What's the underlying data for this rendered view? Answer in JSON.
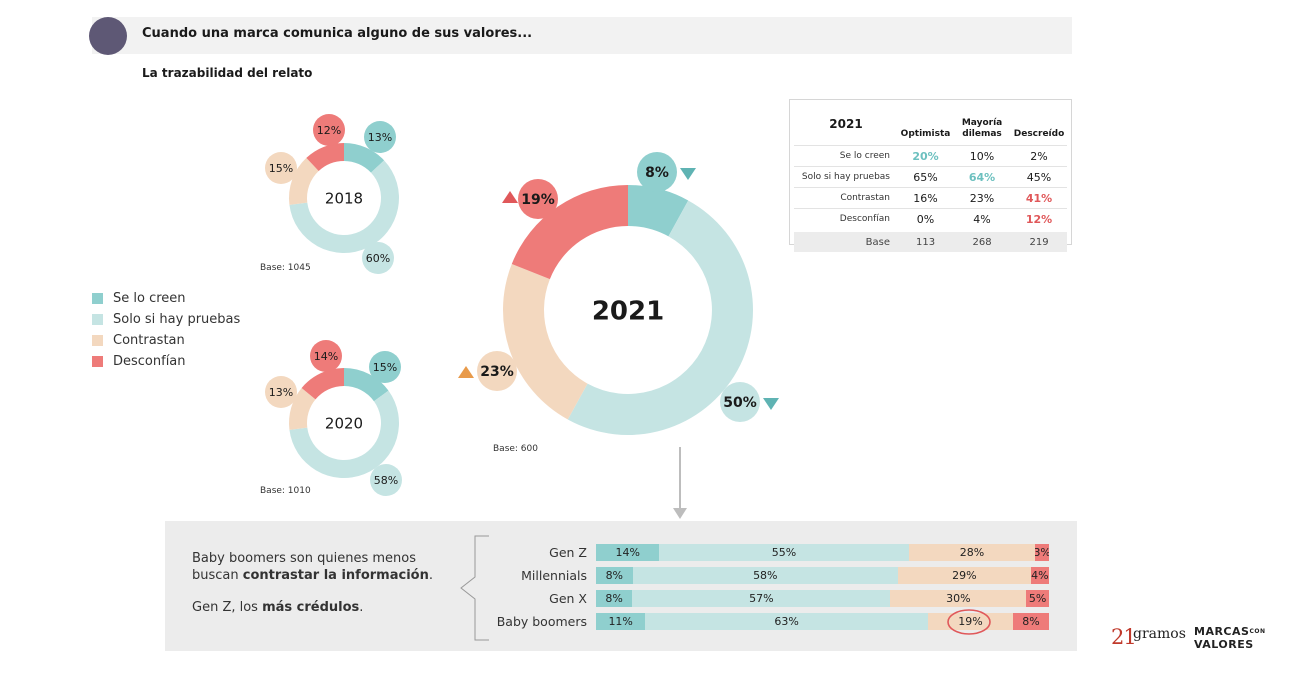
{
  "header": {
    "title": "Cuando una marca comunica alguno de sus valores...",
    "subtitle": "La trazabilidad del relato"
  },
  "colors": {
    "se_lo_creen": "#8fcfce",
    "solo_si_hay_pruebas": "#c5e4e3",
    "contrastan": "#f3d8bf",
    "desconfian": "#ee7b79",
    "up_arrow_red": "#e0585a",
    "up_arrow_orange": "#e89a4a",
    "down_arrow_teal": "#5fb3b3"
  },
  "legend": [
    {
      "label": "Se lo creen",
      "color": "#8fcfce"
    },
    {
      "label": "Solo si hay pruebas",
      "color": "#c5e4e3"
    },
    {
      "label": "Contrastan",
      "color": "#f3d8bf"
    },
    {
      "label": "Desconfían",
      "color": "#ee7b79"
    }
  ],
  "chart_data": [
    {
      "type": "pie",
      "title": "2018",
      "base": "Base: 1045",
      "categories": [
        "Se lo creen",
        "Solo si hay pruebas",
        "Contrastan",
        "Desconfían"
      ],
      "values": [
        13,
        60,
        15,
        12
      ],
      "labels": [
        "13%",
        "60%",
        "15%",
        "12%"
      ]
    },
    {
      "type": "pie",
      "title": "2020",
      "base": "Base: 1010",
      "categories": [
        "Se lo creen",
        "Solo si hay pruebas",
        "Contrastan",
        "Desconfían"
      ],
      "values": [
        15,
        58,
        13,
        14
      ],
      "labels": [
        "15%",
        "58%",
        "13%",
        "14%"
      ]
    },
    {
      "type": "pie",
      "title": "2021",
      "base": "Base: 600",
      "categories": [
        "Se lo creen",
        "Solo si hay pruebas",
        "Contrastan",
        "Desconfían"
      ],
      "values": [
        8,
        50,
        23,
        19
      ],
      "labels": [
        "8%",
        "50%",
        "23%",
        "19%"
      ],
      "trend": [
        "down",
        "down",
        "up",
        "up"
      ]
    },
    {
      "type": "table",
      "title": "2021",
      "columns": [
        "Optimista",
        "Mayoría dilemas",
        "Descreído"
      ],
      "rows": [
        {
          "label": "Se lo creen",
          "values": [
            "20%",
            "10%",
            "2%"
          ],
          "highlight": [
            0
          ]
        },
        {
          "label": "Solo si hay pruebas",
          "values": [
            "65%",
            "64%",
            "45%"
          ],
          "highlight": [
            1
          ]
        },
        {
          "label": "Contrastan",
          "values": [
            "16%",
            "23%",
            "41%"
          ],
          "highlight": [
            2
          ]
        },
        {
          "label": "Desconfían",
          "values": [
            "0%",
            "4%",
            "12%"
          ],
          "highlight": [
            2
          ]
        }
      ],
      "base": {
        "label": "Base",
        "values": [
          "113",
          "268",
          "219"
        ]
      }
    },
    {
      "type": "bar",
      "stacked": true,
      "orientation": "horizontal",
      "categories": [
        "Gen Z",
        "Millennials",
        "Gen X",
        "Baby boomers"
      ],
      "series": [
        {
          "name": "Se lo creen",
          "values": [
            14,
            8,
            8,
            11
          ]
        },
        {
          "name": "Solo si hay pruebas",
          "values": [
            55,
            58,
            57,
            63
          ]
        },
        {
          "name": "Contrastan",
          "values": [
            28,
            29,
            30,
            19
          ]
        },
        {
          "name": "Desconfían",
          "values": [
            3,
            4,
            5,
            8
          ]
        }
      ],
      "circled": {
        "category": "Baby boomers",
        "series": "Contrastan"
      }
    }
  ],
  "bottom_panel": {
    "line1": "Baby boomers son quienes menos",
    "line2_pre": "buscan ",
    "line2_bold": "contrastar la información",
    "line2_post": ".",
    "line3_pre": "Gen Z, los ",
    "line3_bold": "más crédulos",
    "line3_post": "."
  },
  "logos": {
    "num": "21",
    "gramos": "gramos",
    "marcas": "MARCAS",
    "con": "CON",
    "valores": "VALORES"
  }
}
